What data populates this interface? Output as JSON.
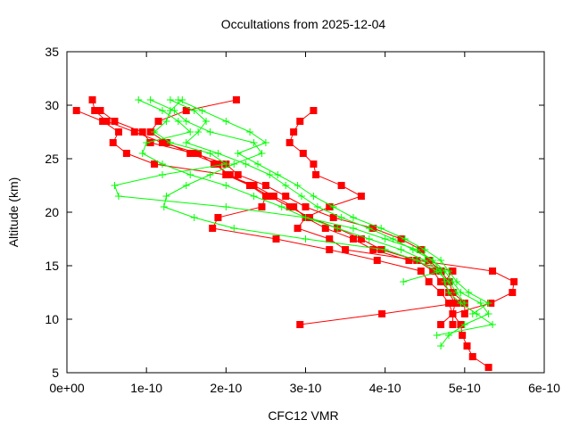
{
  "chart_data": {
    "type": "line",
    "title": "Occultations from 2025-12-04",
    "xlabel": "CFC12 VMR",
    "ylabel": "Altitude (km)",
    "xlim": [
      0,
      6e-10
    ],
    "ylim": [
      5,
      35
    ],
    "x_ticks": [
      0,
      1e-10,
      2e-10,
      3e-10,
      4e-10,
      5e-10,
      6e-10
    ],
    "x_tick_labels": [
      "0e+00",
      "1e-10",
      "2e-10",
      "3e-10",
      "4e-10",
      "5e-10",
      "6e-10"
    ],
    "y_ticks": [
      5,
      10,
      15,
      20,
      25,
      30,
      35
    ],
    "y_tick_labels": [
      "5",
      "10",
      "15",
      "20",
      "25",
      "30",
      "35"
    ],
    "grid": false,
    "legend": "none",
    "colors": {
      "red_series": "#ff0000",
      "green_series": "#00ff00"
    },
    "series": [
      {
        "color": "red",
        "marker": "square",
        "altitude": [
          30.5,
          29.5,
          28.5,
          27.5,
          26.5,
          25.5,
          24.5,
          23.5,
          22.5,
          21.5,
          20.5,
          19.5,
          18.5,
          17.5,
          16.5,
          15.5,
          14.5,
          13.5,
          12.5,
          11.5,
          10.5,
          9.5,
          8.5,
          7.5,
          6.5,
          5.5
        ],
        "values": [
          2.13e-10,
          1.5e-10,
          1.15e-10,
          1.05e-10,
          1.25e-10,
          1.55e-10,
          1.9e-10,
          2e-10,
          2.35e-10,
          2.6e-10,
          2.85e-10,
          3e-10,
          3.25e-10,
          3.6e-10,
          3.85e-10,
          4.3e-10,
          4.85e-10,
          4.75e-10,
          4.8e-10,
          4.88e-10,
          4.85e-10,
          4.95e-10,
          4.97e-10,
          5.03e-10,
          5.1e-10,
          5.3e-10
        ]
      },
      {
        "color": "red",
        "marker": "square",
        "altitude": [
          29.5,
          28.5,
          27.5,
          26.5,
          25.5,
          24.5,
          23.5,
          22.5,
          21.5,
          20.5,
          19.5,
          18.5,
          17.5,
          16.5,
          15.5,
          14.5,
          13.5,
          12.5,
          11.5,
          10.5,
          9.5
        ],
        "values": [
          3.1e-10,
          2.93e-10,
          2.85e-10,
          2.8e-10,
          2.97e-10,
          3.1e-10,
          3.13e-10,
          3.45e-10,
          3.7e-10,
          3.3e-10,
          3e-10,
          2.9e-10,
          3.3e-10,
          3.5e-10,
          4.4e-10,
          5.35e-10,
          5.62e-10,
          5.6e-10,
          5.33e-10,
          4.85e-10,
          4.7e-10
        ]
      },
      {
        "color": "red",
        "marker": "square",
        "altitude": [
          29.5,
          28.5,
          27.5,
          26.5,
          25.5,
          24.5,
          23.5,
          22.5,
          21.5,
          20.5,
          19.5,
          18.5,
          17.5,
          16.5,
          15.5,
          14.5,
          13.5,
          12.5,
          11.5,
          10.5,
          9.5
        ],
        "values": [
          1.2e-11,
          4.5e-11,
          6.5e-11,
          5.8e-11,
          7.5e-11,
          1.1e-10,
          2e-10,
          2.3e-10,
          2.55e-10,
          2.8e-10,
          3.05e-10,
          3.4e-10,
          3.7e-10,
          3.95e-10,
          4.4e-10,
          4.6e-10,
          4.7e-10,
          4.83e-10,
          4.9e-10,
          3.96e-10,
          2.93e-10
        ]
      },
      {
        "color": "red",
        "marker": "square",
        "altitude": [
          30.5,
          29.5,
          28.5,
          27.5,
          26.5,
          25.5,
          24.5,
          23.5,
          22.5,
          21.5,
          20.5,
          19.5,
          18.5,
          17.5,
          16.5,
          15.5,
          14.5,
          13.5,
          12.5,
          11.5,
          10.5,
          9.5
        ],
        "values": [
          3.2e-11,
          3.5e-11,
          5e-11,
          8.5e-11,
          1.2e-10,
          1.65e-10,
          1.85e-10,
          2.05e-10,
          2.3e-10,
          2.5e-10,
          2.45e-10,
          1.9e-10,
          1.83e-10,
          2.63e-10,
          3.3e-10,
          3.9e-10,
          4.45e-10,
          4.55e-10,
          4.7e-10,
          4.8e-10,
          4.85e-10,
          4.85e-10
        ]
      },
      {
        "color": "red",
        "marker": "square",
        "altitude": [
          29.5,
          28.5,
          27.5,
          26.5,
          25.5,
          24.5,
          23.5,
          22.5,
          21.5,
          20.5,
          19.5,
          18.5,
          17.5,
          16.5,
          15.5,
          14.5,
          13.5,
          12.5,
          11.5,
          10.5
        ],
        "values": [
          4.2e-11,
          6e-11,
          9.5e-11,
          1.05e-10,
          1.6e-10,
          2e-10,
          2.15e-10,
          2.5e-10,
          2.75e-10,
          3e-10,
          3.35e-10,
          3.85e-10,
          4.2e-10,
          4.45e-10,
          4.55e-10,
          4.7e-10,
          4.8e-10,
          4.85e-10,
          5e-10,
          5e-10
        ]
      },
      {
        "color": "green",
        "marker": "plus",
        "altitude": [
          30.5,
          29.5,
          28.5,
          27.5,
          26.5,
          25.5,
          24.5,
          23.5,
          22.5,
          21.5,
          20.5,
          19.5,
          18.5,
          17.5,
          16.5,
          15.5,
          14.5,
          13.5,
          12.5,
          11.5,
          10.5,
          9.5,
          8.5
        ],
        "values": [
          9e-11,
          1.2e-10,
          1.4e-10,
          1.55e-10,
          1e-10,
          9.5e-11,
          1.2e-10,
          1.55e-10,
          2e-10,
          2.35e-10,
          2.7e-10,
          3e-10,
          3.4e-10,
          3.8e-10,
          4.2e-10,
          4.5e-10,
          4.7e-10,
          4.75e-10,
          4.8e-10,
          4.95e-10,
          5.15e-10,
          5.35e-10,
          4.65e-10
        ]
      },
      {
        "color": "green",
        "marker": "plus",
        "altitude": [
          30.5,
          29.5,
          28.5,
          27.5,
          26.5,
          25.5,
          24.5,
          23.5,
          22.5,
          21.5,
          20.5,
          19.5,
          18.5,
          17.5,
          16.5,
          15.5,
          14.5,
          13.5,
          12.5,
          11.5,
          10.5,
          9.5,
          8.5,
          7.5
        ],
        "values": [
          1.3e-10,
          1.6e-10,
          1.75e-10,
          1.65e-10,
          1.5e-10,
          1.9e-10,
          2.25e-10,
          2.55e-10,
          2.75e-10,
          2.95e-10,
          3.15e-10,
          3.45e-10,
          3.8e-10,
          4.1e-10,
          4.35e-10,
          4.6e-10,
          4.75e-10,
          4.85e-10,
          4.95e-10,
          5.2e-10,
          5.3e-10,
          5e-10,
          4.8e-10,
          4.7e-10
        ]
      },
      {
        "color": "green",
        "marker": "plus",
        "altitude": [
          30.5,
          29.5,
          28.5,
          27.5,
          26.5,
          25.5,
          24.5,
          23.5,
          22.5,
          21.5,
          20.5,
          19.5,
          18.5,
          17.5,
          16.5,
          15.5,
          14.5,
          13.5
        ],
        "values": [
          1.45e-10,
          1.3e-10,
          1.25e-10,
          1.1e-10,
          1.3e-10,
          1.8e-10,
          2e-10,
          1.2e-10,
          6e-11,
          6.5e-11,
          2e-10,
          3e-10,
          3.6e-10,
          4e-10,
          4.4e-10,
          4.6e-10,
          4.7e-10,
          4.23e-10
        ]
      },
      {
        "color": "green",
        "marker": "plus",
        "altitude": [
          30.5,
          29.5,
          28.5,
          27.5,
          26.5,
          25.5,
          24.5,
          23.5,
          22.5,
          21.5,
          20.5,
          19.5,
          18.5,
          17.5,
          16.5,
          15.5,
          14.5,
          13.5,
          12.5,
          11.5,
          10.5
        ],
        "values": [
          1.4e-10,
          1.7e-10,
          2e-10,
          2.3e-10,
          2.5e-10,
          2.15e-10,
          2.4e-10,
          2.65e-10,
          2.9e-10,
          3.1e-10,
          3.35e-10,
          3.6e-10,
          3.95e-10,
          4.25e-10,
          4.5e-10,
          4.7e-10,
          4.8e-10,
          4.9e-10,
          5.05e-10,
          5.3e-10,
          5.1e-10
        ]
      },
      {
        "color": "green",
        "marker": "plus",
        "altitude": [
          30.5,
          29.5,
          28.5,
          27.5,
          26.5,
          25.5,
          24.5,
          23.5,
          22.5,
          21.5,
          20.5,
          19.5,
          18.5,
          17.5,
          16.5,
          15.5,
          14.5,
          13.5,
          12.5,
          11.5
        ],
        "values": [
          1.05e-10,
          1.35e-10,
          1.5e-10,
          1.8e-10,
          2.35e-10,
          2.45e-10,
          2.1e-10,
          1.8e-10,
          1.5e-10,
          1.25e-10,
          1.22e-10,
          1.6e-10,
          2.1e-10,
          3e-10,
          4e-10,
          4.4e-10,
          4.65e-10,
          4.8e-10,
          4.9e-10,
          5e-10
        ]
      }
    ]
  }
}
